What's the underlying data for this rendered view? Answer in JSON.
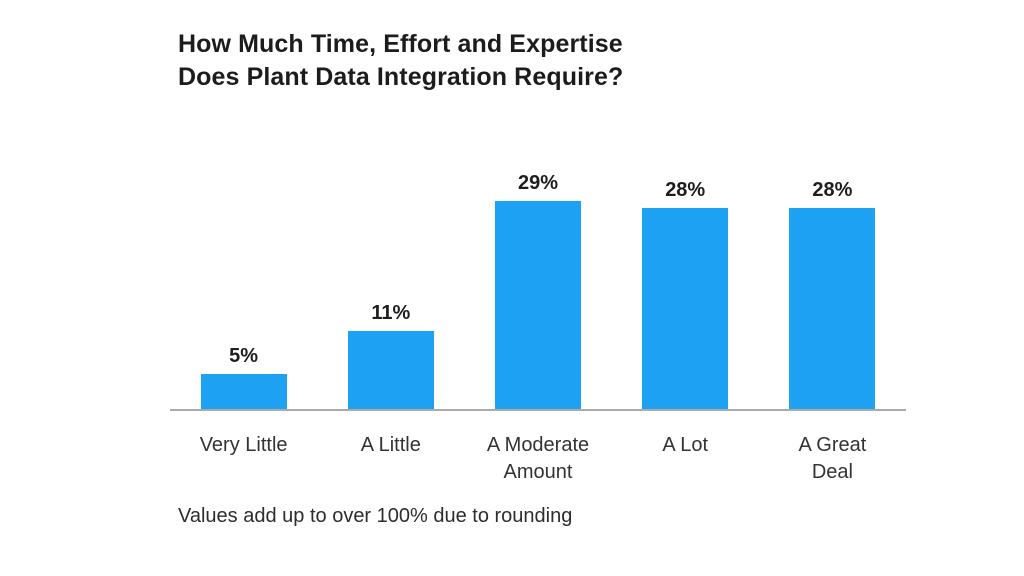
{
  "title": "How Much Time, Effort and Expertise\nDoes Plant Data Integration Require?",
  "footnote": "Values add up to over 100% due to rounding",
  "colors": {
    "bar": "#1da1f2",
    "axis": "#ababab",
    "title_text": "#1c1c1c",
    "value_label_text": "#1e1e1e",
    "category_text": "#333333"
  },
  "chart_data": {
    "type": "bar",
    "title": "How Much Time, Effort and Expertise Does Plant Data Integration Require?",
    "categories": [
      "Very Little",
      "A Little",
      "A Moderate Amount",
      "A Lot",
      "A Great Deal"
    ],
    "category_display_labels": [
      "Very Little",
      "A Little",
      "A Moderate\nAmount",
      "A Lot",
      "A Great\nDeal"
    ],
    "values": [
      5,
      11,
      29,
      28,
      28
    ],
    "value_labels": [
      "5%",
      "11%",
      "29%",
      "28%",
      "28%"
    ],
    "xlabel": "",
    "ylabel": "",
    "unit": "percent",
    "ylim": [
      0,
      32
    ],
    "grid": false,
    "legend": false,
    "annotation": "Values add up to over 100% due to rounding"
  }
}
